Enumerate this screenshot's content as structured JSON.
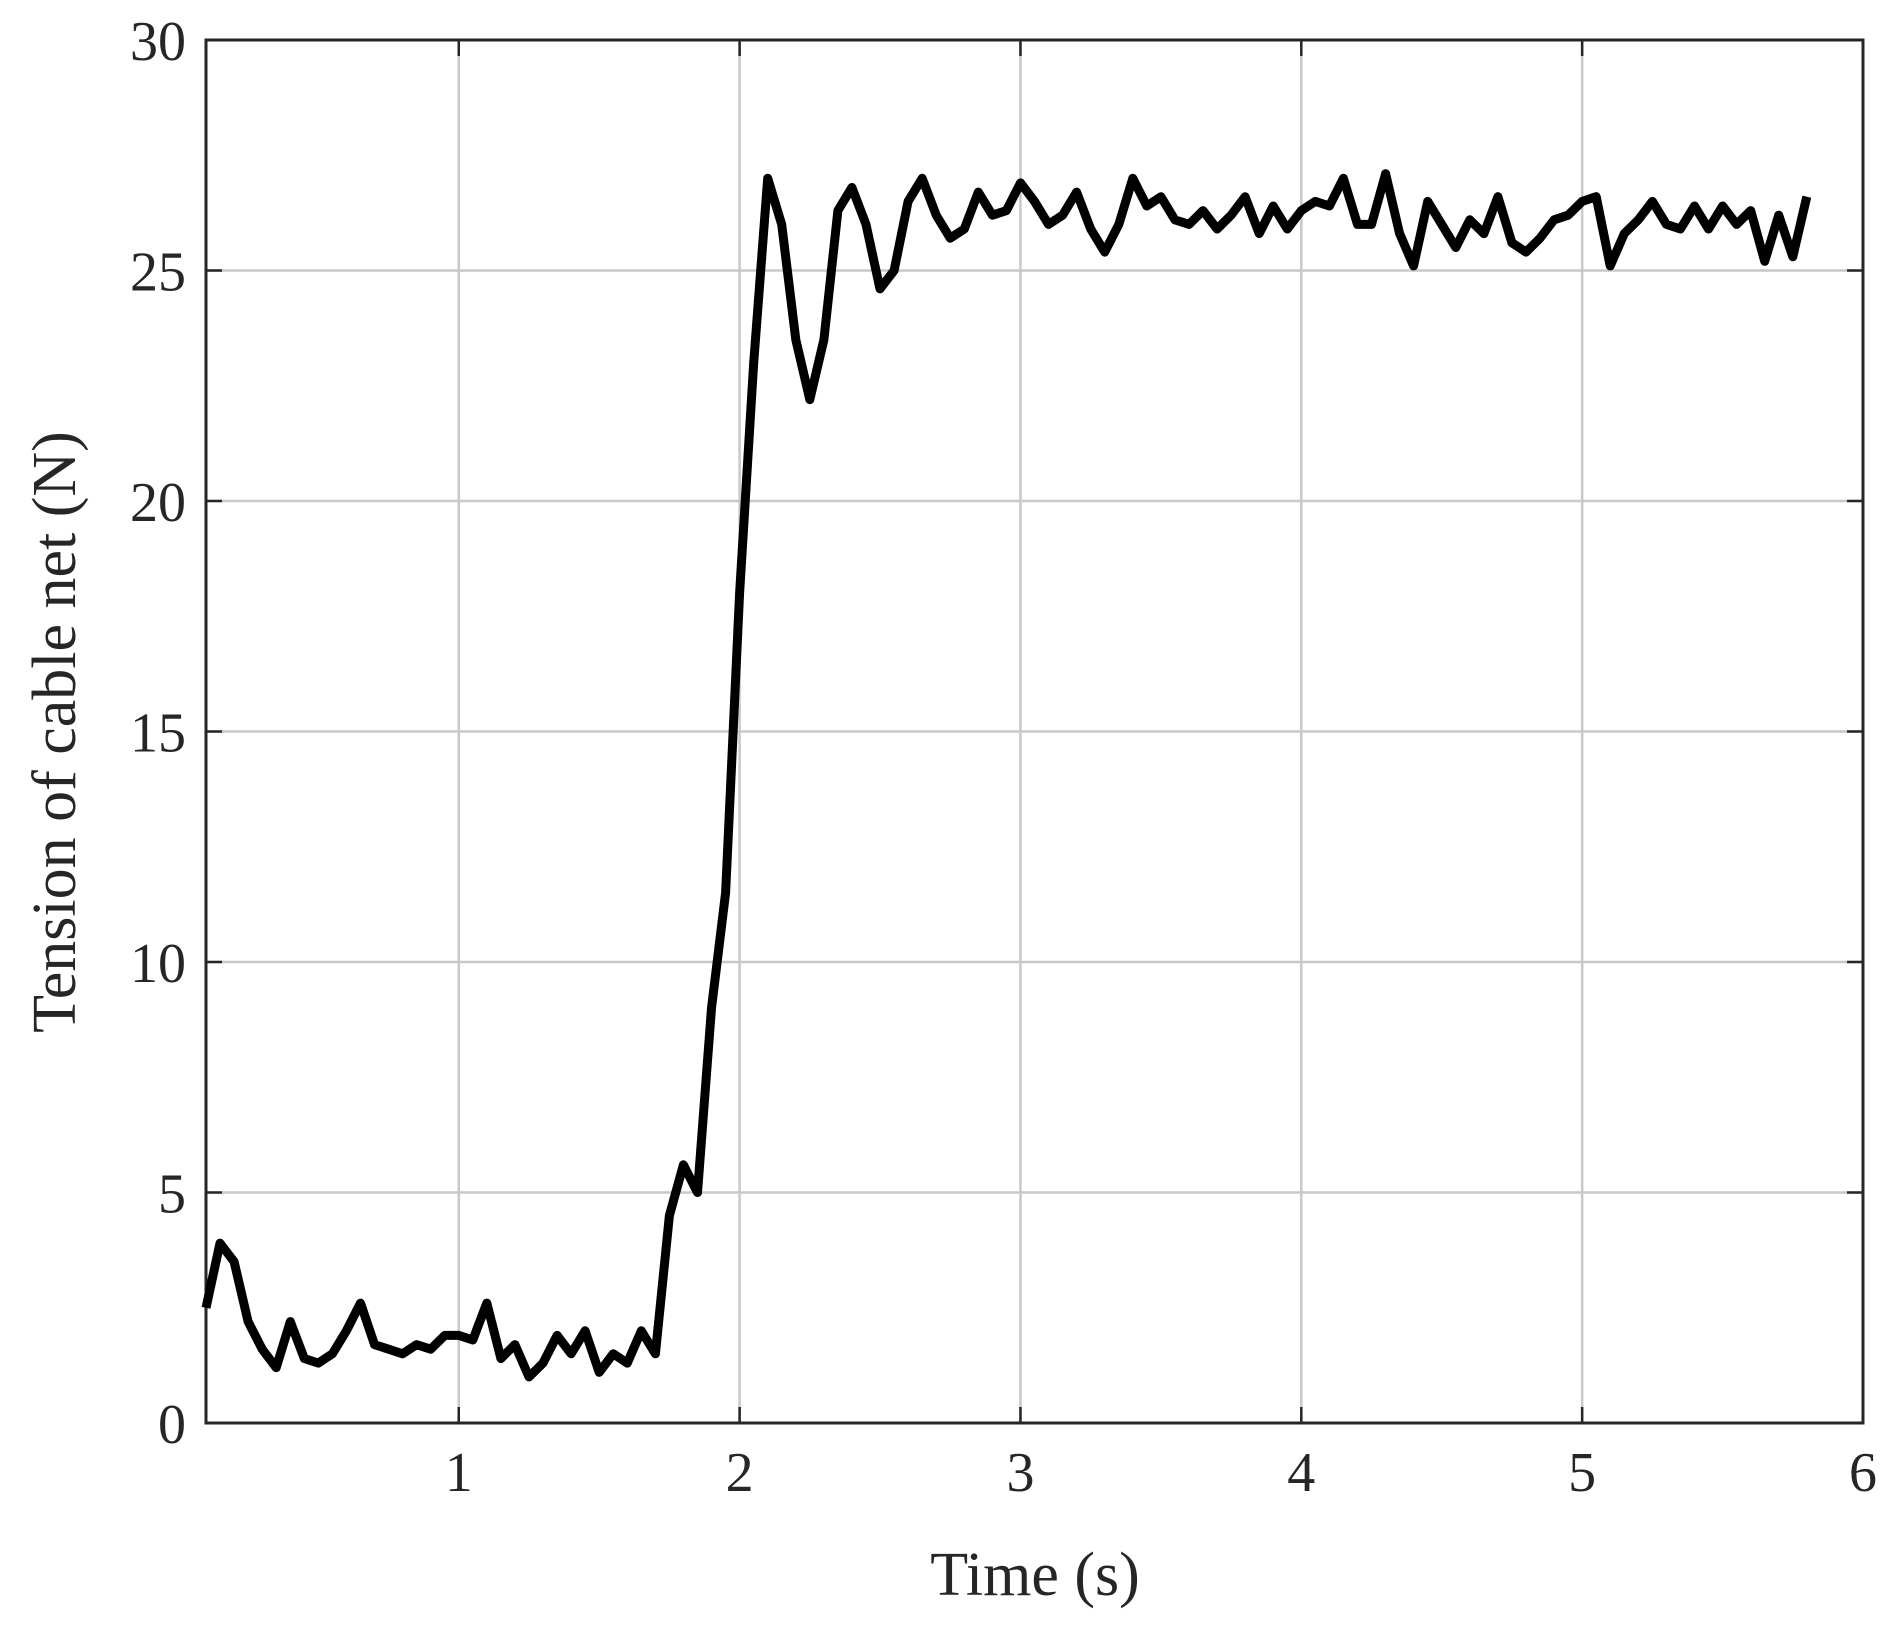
{
  "chart_data": {
    "type": "line",
    "xlabel": "Time (s)",
    "ylabel": "Tension of cable net (N)",
    "x": [
      0.1,
      0.15,
      0.2,
      0.25,
      0.3,
      0.35,
      0.4,
      0.45,
      0.5,
      0.55,
      0.6,
      0.65,
      0.7,
      0.75,
      0.8,
      0.85,
      0.9,
      0.95,
      1.0,
      1.05,
      1.1,
      1.15,
      1.2,
      1.25,
      1.3,
      1.35,
      1.4,
      1.45,
      1.5,
      1.55,
      1.6,
      1.65,
      1.7,
      1.75,
      1.8,
      1.85,
      1.9,
      1.95,
      2.0,
      2.05,
      2.1,
      2.15,
      2.2,
      2.25,
      2.3,
      2.35,
      2.4,
      2.45,
      2.5,
      2.55,
      2.6,
      2.65,
      2.7,
      2.75,
      2.8,
      2.85,
      2.9,
      2.95,
      3.0,
      3.05,
      3.1,
      3.15,
      3.2,
      3.25,
      3.3,
      3.35,
      3.4,
      3.45,
      3.5,
      3.55,
      3.6,
      3.65,
      3.7,
      3.75,
      3.8,
      3.85,
      3.9,
      3.95,
      4.0,
      4.05,
      4.1,
      4.15,
      4.2,
      4.25,
      4.3,
      4.35,
      4.4,
      4.45,
      4.5,
      4.55,
      4.6,
      4.65,
      4.7,
      4.75,
      4.8,
      4.85,
      4.9,
      4.95,
      5.0,
      5.05,
      5.1,
      5.15,
      5.2,
      5.25,
      5.3,
      5.35,
      5.4,
      5.45,
      5.5,
      5.55,
      5.6,
      5.65,
      5.7,
      5.75,
      5.8
    ],
    "series": [
      {
        "color": "#000000",
        "values": [
          2.5,
          3.9,
          3.5,
          2.2,
          1.6,
          1.2,
          2.2,
          1.4,
          1.3,
          1.5,
          2.0,
          2.6,
          1.7,
          1.6,
          1.5,
          1.7,
          1.6,
          1.9,
          1.9,
          1.8,
          2.6,
          1.4,
          1.7,
          1.0,
          1.3,
          1.9,
          1.5,
          2.0,
          1.1,
          1.5,
          1.3,
          2.0,
          1.5,
          4.5,
          5.6,
          5.0,
          9.0,
          11.5,
          18,
          23,
          27,
          26,
          23.5,
          22.2,
          23.5,
          26.3,
          26.8,
          26,
          24.6,
          25,
          26.5,
          27,
          26.2,
          25.7,
          25.9,
          26.7,
          26.2,
          26.3,
          26.9,
          26.5,
          26.0,
          26.2,
          26.7,
          25.9,
          25.4,
          26.0,
          27.0,
          26.4,
          26.6,
          26.1,
          26.0,
          26.3,
          25.9,
          26.2,
          26.6,
          25.8,
          26.4,
          25.9,
          26.3,
          26.5,
          26.4,
          27.0,
          26.0,
          26.0,
          27.1,
          25.8,
          25.1,
          26.5,
          26.0,
          25.5,
          26.1,
          25.8,
          26.6,
          25.6,
          25.4,
          25.7,
          26.1,
          26.2,
          26.5,
          26.6,
          25.1,
          25.8,
          26.1,
          26.5,
          26.0,
          25.9,
          26.4,
          25.9,
          26.4,
          26.0,
          26.3,
          25.2,
          26.2,
          25.3,
          26.6
        ]
      }
    ],
    "xlim": [
      0.1,
      6
    ],
    "xticks": [
      1,
      2,
      3,
      4,
      5,
      6
    ],
    "ylim": [
      0,
      30
    ],
    "yticks": [
      0,
      5,
      10,
      15,
      20,
      25,
      30
    ],
    "grid": true
  }
}
